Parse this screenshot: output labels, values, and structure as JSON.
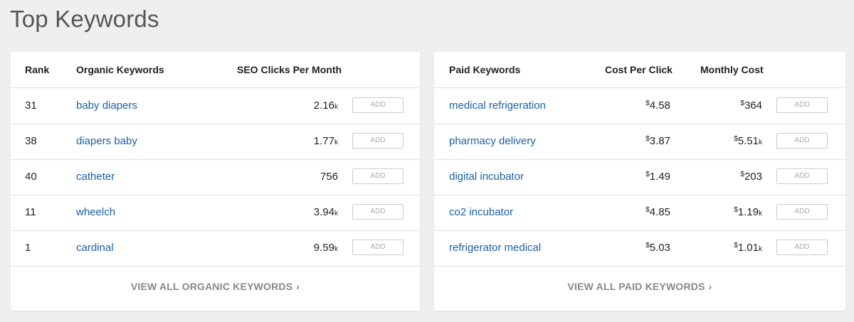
{
  "page": {
    "title": "Top Keywords"
  },
  "organic": {
    "headers": {
      "rank": "Rank",
      "keyword": "Organic Keywords",
      "clicks": "SEO Clicks Per Month"
    },
    "rows": [
      {
        "rank": "31",
        "keyword": "baby diapers",
        "clicks": "2.16",
        "clicks_suffix": "k",
        "add_label": "ADD"
      },
      {
        "rank": "38",
        "keyword": "diapers baby",
        "clicks": "1.77",
        "clicks_suffix": "k",
        "add_label": "ADD"
      },
      {
        "rank": "40",
        "keyword": "catheter",
        "clicks": "756",
        "clicks_suffix": "",
        "add_label": "ADD"
      },
      {
        "rank": "11",
        "keyword": "wheelch",
        "clicks": "3.94",
        "clicks_suffix": "k",
        "add_label": "ADD"
      },
      {
        "rank": "1",
        "keyword": "cardinal",
        "clicks": "9.59",
        "clicks_suffix": "k",
        "add_label": "ADD"
      }
    ],
    "view_all": "VIEW ALL ORGANIC KEYWORDS",
    "chevron": "›"
  },
  "paid": {
    "headers": {
      "keyword": "Paid Keywords",
      "cpc": "Cost Per Click",
      "monthly": "Monthly Cost"
    },
    "rows": [
      {
        "keyword": "medical refrigeration",
        "cpc_symbol": "$",
        "cpc": "4.58",
        "monthly_symbol": "$",
        "monthly": "364",
        "monthly_suffix": "",
        "add_label": "ADD"
      },
      {
        "keyword": "pharmacy delivery",
        "cpc_symbol": "$",
        "cpc": "3.87",
        "monthly_symbol": "$",
        "monthly": "5.51",
        "monthly_suffix": "k",
        "add_label": "ADD"
      },
      {
        "keyword": "digital incubator",
        "cpc_symbol": "$",
        "cpc": "1.49",
        "monthly_symbol": "$",
        "monthly": "203",
        "monthly_suffix": "",
        "add_label": "ADD"
      },
      {
        "keyword": "co2 incubator",
        "cpc_symbol": "$",
        "cpc": "4.85",
        "monthly_symbol": "$",
        "monthly": "1.19",
        "monthly_suffix": "k",
        "add_label": "ADD"
      },
      {
        "keyword": "refrigerator medical",
        "cpc_symbol": "$",
        "cpc": "5.03",
        "monthly_symbol": "$",
        "monthly": "1.01",
        "monthly_suffix": "k",
        "add_label": "ADD"
      }
    ],
    "view_all": "VIEW ALL PAID KEYWORDS",
    "chevron": "›"
  }
}
